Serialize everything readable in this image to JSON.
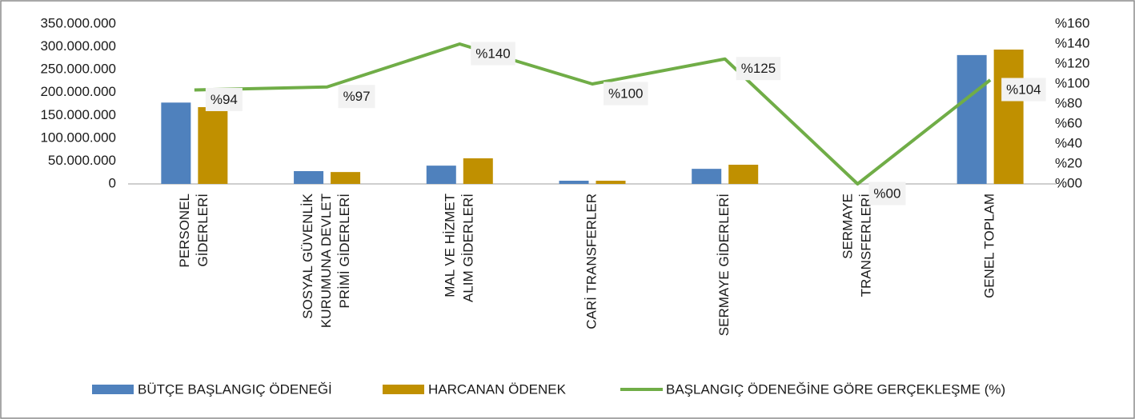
{
  "chart_data": {
    "type": "bar_line",
    "categories": [
      [
        "PERSONEL",
        "GİDERLERİ"
      ],
      [
        "SOSYAL GÜVENLİK",
        "KURUMUNA DEVLET",
        "PRİMİ GİDERLERİ"
      ],
      [
        "MAL VE HİZMET",
        "ALIM GİDERLERİ"
      ],
      [
        "CARİ TRANSFERLER"
      ],
      [
        "SERMAYE GİDERLERİ"
      ],
      [
        "SERMAYE",
        "TRANSFERLERİ"
      ],
      [
        "GENEL TOPLAM"
      ]
    ],
    "series": [
      {
        "name": "BÜTÇE BAŞLANGIÇ ÖDENEĞİ",
        "type": "bar",
        "color": "#4f81bd",
        "values": [
          178000000,
          28000000,
          40000000,
          7000000,
          33000000,
          0,
          282000000
        ]
      },
      {
        "name": "HARCANAN ÖDENEK",
        "type": "bar",
        "color": "#c09000",
        "values": [
          168000000,
          26000000,
          56000000,
          7000000,
          42000000,
          0,
          294000000
        ]
      },
      {
        "name": "BAŞLANGIÇ ÖDENEĞİNE GÖRE GERÇEKLEŞME (%)",
        "type": "line",
        "axis": "y2",
        "color": "#70ad47",
        "values": [
          94,
          97,
          140,
          100,
          125,
          0,
          104
        ],
        "value_labels": [
          "%94",
          "%97",
          "%140",
          "%100",
          "%125",
          "%00",
          "%104"
        ]
      }
    ],
    "ylim": [
      0,
      350000000
    ],
    "yticks": [
      {
        "value": 0,
        "label": "0"
      },
      {
        "value": 50000000,
        "label": "50.000.000"
      },
      {
        "value": 100000000,
        "label": "100.000.000"
      },
      {
        "value": 150000000,
        "label": "150.000.000"
      },
      {
        "value": 200000000,
        "label": "200.000.000"
      },
      {
        "value": 250000000,
        "label": "250.000.000"
      },
      {
        "value": 300000000,
        "label": "300.000.000"
      },
      {
        "value": 350000000,
        "label": "350.000.000"
      }
    ],
    "y2lim": [
      0,
      160
    ],
    "y2ticks": [
      {
        "value": 0,
        "label": "%00"
      },
      {
        "value": 20,
        "label": "%20"
      },
      {
        "value": 40,
        "label": "%40"
      },
      {
        "value": 60,
        "label": "%60"
      },
      {
        "value": 80,
        "label": "%80"
      },
      {
        "value": 100,
        "label": "%100"
      },
      {
        "value": 120,
        "label": "%120"
      },
      {
        "value": 140,
        "label": "%140"
      },
      {
        "value": 160,
        "label": "%160"
      }
    ],
    "legend": "bottom"
  }
}
